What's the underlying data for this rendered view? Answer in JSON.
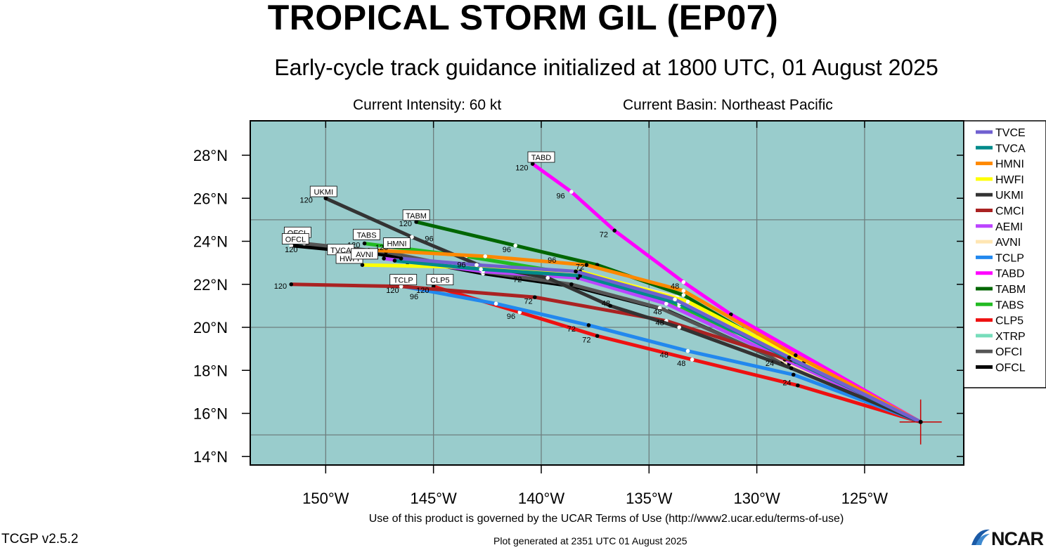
{
  "header": {
    "title": "TROPICAL STORM GIL (EP07)",
    "subtitle": "Early-cycle track guidance initialized at 1800 UTC, 01 August 2025",
    "intensity": "Current Intensity: 60 kt",
    "basin": "Current Basin: Northeast Pacific"
  },
  "footer": {
    "terms": "Use of this product is governed by the UCAR Terms of Use (http://www2.ucar.edu/terms-of-use)",
    "generated": "Plot generated at 2351 UTC   01 August 2025",
    "version": "TCGP v2.5.2",
    "logo_text": "NCAR"
  },
  "map": {
    "lon_range": [
      -153.5,
      -120.4
    ],
    "lat_range": [
      13.6,
      29.6
    ],
    "lat_ticks": [
      {
        "v": 14,
        "label": "14°N"
      },
      {
        "v": 16,
        "label": "16°N"
      },
      {
        "v": 18,
        "label": "18°N"
      },
      {
        "v": 20,
        "label": "20°N"
      },
      {
        "v": 22,
        "label": "22°N"
      },
      {
        "v": 24,
        "label": "24°N"
      },
      {
        "v": 26,
        "label": "26°N"
      },
      {
        "v": 28,
        "label": "28°N"
      }
    ],
    "lon_ticks": [
      {
        "v": -150,
        "label": "150°W"
      },
      {
        "v": -145,
        "label": "145°W"
      },
      {
        "v": -140,
        "label": "140°W"
      },
      {
        "v": -135,
        "label": "135°W"
      },
      {
        "v": -130,
        "label": "130°W"
      },
      {
        "v": -125,
        "label": "125°W"
      }
    ],
    "grid_lons": [
      -150,
      -145,
      -140,
      -135,
      -130,
      -125
    ],
    "grid_lats": [
      15,
      20,
      25
    ],
    "current_position": {
      "lon": -122.4,
      "lat": 15.6
    },
    "colors": {
      "ocean": "#99cccc",
      "grid": "#6e7e7e",
      "marker": "#cc0000"
    }
  },
  "chart_data": {
    "type": "track-map",
    "models": [
      {
        "name": "TVCE",
        "color": "#7060d0",
        "track": [
          [
            -122.4,
            15.6
          ],
          [
            -128.5,
            18.6
          ],
          [
            -133.8,
            21.3
          ],
          [
            -138.4,
            22.6
          ],
          [
            -143,
            22.9
          ],
          [
            -146.5,
            23.2
          ]
        ]
      },
      {
        "name": "TVCA",
        "color": "#008a8a",
        "track": [
          [
            -122.4,
            15.6
          ],
          [
            -128.4,
            18.5
          ],
          [
            -133.6,
            21.1
          ],
          [
            -138.2,
            22.4
          ],
          [
            -142.8,
            22.7
          ],
          [
            -146.8,
            23.1
          ]
        ]
      },
      {
        "name": "HMNI",
        "color": "#ff8800",
        "track": [
          [
            -122.4,
            15.6
          ],
          [
            -128.2,
            18.7
          ],
          [
            -133.4,
            21.7
          ],
          [
            -137.9,
            22.9
          ],
          [
            -142.6,
            23.3
          ],
          [
            -148,
            23.6
          ]
        ],
        "labels": [
          {
            "lon": -139.5,
            "lat": 23.0,
            "t": "96"
          },
          {
            "lon": -147.4,
            "lat": 23.6,
            "t": "120"
          }
        ]
      },
      {
        "name": "HWFI",
        "color": "#ffff00",
        "track": [
          [
            -122.4,
            15.6
          ],
          [
            -127.8,
            18.4
          ],
          [
            -133.2,
            21.2
          ],
          [
            -138.2,
            22.6
          ],
          [
            -143.5,
            22.8
          ],
          [
            -148.3,
            22.9
          ]
        ]
      },
      {
        "name": "UKMI",
        "color": "#333333",
        "track": [
          [
            -122.4,
            15.6
          ],
          [
            -128.4,
            18.1
          ],
          [
            -133.6,
            20.0
          ],
          [
            -136.8,
            21.0
          ],
          [
            -139.7,
            22.3
          ],
          [
            -142.9,
            22.9
          ],
          [
            -146,
            24.2
          ],
          [
            -150,
            26
          ]
        ],
        "labels": [
          {
            "lon": -150.9,
            "lat": 25.8,
            "t": "120"
          },
          {
            "lon": -145.2,
            "lat": 24.0,
            "t": "96"
          },
          {
            "lon": -141.1,
            "lat": 22.1,
            "t": "72"
          },
          {
            "lon": -134.6,
            "lat": 20.6,
            "t": "48"
          }
        ]
      },
      {
        "name": "CMCI",
        "color": "#aa2222",
        "track": [
          [
            -122.4,
            15.6
          ],
          [
            -128.2,
            18.4
          ],
          [
            -134.2,
            20.3
          ],
          [
            -140.3,
            21.4
          ],
          [
            -146.5,
            21.9
          ],
          [
            -151.6,
            22
          ]
        ],
        "labels": [
          {
            "lon": -152.1,
            "lat": 21.8,
            "t": "120"
          },
          {
            "lon": -140.6,
            "lat": 21.1,
            "t": "72"
          },
          {
            "lon": -137,
            "lat": 21.0,
            "t": "48"
          },
          {
            "lon": -134.5,
            "lat": 20.1,
            "t": "48"
          }
        ]
      },
      {
        "name": "AEMI",
        "color": "#bb44ff",
        "track": [
          [
            -122.4,
            15.6
          ],
          [
            -128.7,
            18.5
          ],
          [
            -134.2,
            21.1
          ],
          [
            -138.3,
            22.3
          ],
          [
            -142.7,
            22.6
          ],
          [
            -147.3,
            23.2
          ]
        ]
      },
      {
        "name": "AVNI",
        "color": "#ffe6b3",
        "track": [
          [
            -122.4,
            15.6
          ],
          [
            -128.5,
            18.3
          ],
          [
            -133.7,
            21.4
          ],
          [
            -138,
            22.5
          ],
          [
            -142.6,
            22.8
          ],
          [
            -146.2,
            23
          ]
        ]
      },
      {
        "name": "TCLP",
        "color": "#2288ee",
        "track": [
          [
            -122.4,
            15.6
          ],
          [
            -128.3,
            17.8
          ],
          [
            -133.2,
            18.9
          ],
          [
            -137.8,
            20.1
          ],
          [
            -142.1,
            21.1
          ],
          [
            -146.4,
            21.9
          ]
        ],
        "labels": [
          {
            "lon": -146.9,
            "lat": 21.6,
            "t": "120"
          },
          {
            "lon": -145.9,
            "lat": 21.3,
            "t": "96"
          },
          {
            "lon": -138.6,
            "lat": 19.8,
            "t": "72"
          },
          {
            "lon": -134.3,
            "lat": 18.6,
            "t": "48"
          },
          {
            "lon": -129.4,
            "lat": 18.2,
            "t": "24"
          }
        ]
      },
      {
        "name": "TABD",
        "color": "#ff00ff",
        "track": [
          [
            -122.4,
            15.6
          ],
          [
            -131.2,
            20.6
          ],
          [
            -133.4,
            22.1
          ],
          [
            -136.6,
            24.5
          ],
          [
            -138.6,
            26.3
          ],
          [
            -140.4,
            27.6
          ]
        ],
        "labels": [
          {
            "lon": -140.9,
            "lat": 27.3,
            "t": "120"
          },
          {
            "lon": -139.1,
            "lat": 26,
            "t": "96"
          },
          {
            "lon": -137.1,
            "lat": 24.2,
            "t": "72"
          },
          {
            "lon": -133.8,
            "lat": 21.8,
            "t": "48"
          }
        ]
      },
      {
        "name": "TABM",
        "color": "#006600",
        "track": [
          [
            -122.4,
            15.6
          ],
          [
            -128.3,
            18.5
          ],
          [
            -133.4,
            21.5
          ],
          [
            -137.4,
            22.9
          ],
          [
            -141.2,
            23.8
          ],
          [
            -145.8,
            24.9
          ]
        ],
        "labels": [
          {
            "lon": -146.3,
            "lat": 24.7,
            "t": "120"
          },
          {
            "lon": -141.6,
            "lat": 23.5,
            "t": "96"
          },
          {
            "lon": -138.2,
            "lat": 22.7,
            "t": "72"
          }
        ]
      },
      {
        "name": "TABS",
        "color": "#22bb22",
        "track": [
          [
            -122.4,
            15.6
          ],
          [
            -128.6,
            18.6
          ],
          [
            -133.6,
            21.0
          ],
          [
            -138,
            22.4
          ],
          [
            -143.5,
            23.3
          ],
          [
            -148.2,
            23.9
          ]
        ],
        "labels": [
          {
            "lon": -148.7,
            "lat": 23.7,
            "t": "120"
          },
          {
            "lon": -143.7,
            "lat": 22.8,
            "t": "96"
          }
        ]
      },
      {
        "name": "CLP5",
        "color": "#ee1111",
        "track": [
          [
            -122.4,
            15.6
          ],
          [
            -128.1,
            17.3
          ],
          [
            -133,
            18.5
          ],
          [
            -137.4,
            19.6
          ],
          [
            -141,
            20.7
          ],
          [
            -145,
            21.9
          ]
        ],
        "labels": [
          {
            "lon": -145.5,
            "lat": 21.6,
            "t": "120"
          },
          {
            "lon": -141.4,
            "lat": 20.4,
            "t": "96"
          },
          {
            "lon": -137.9,
            "lat": 19.3,
            "t": "72"
          },
          {
            "lon": -133.5,
            "lat": 18.2,
            "t": "48"
          },
          {
            "lon": -128.6,
            "lat": 17.3,
            "t": "24"
          }
        ]
      },
      {
        "name": "XTRP",
        "color": "#77ddbb",
        "track": []
      },
      {
        "name": "OFCI",
        "color": "#555555",
        "track": [
          [
            -122.4,
            15.6
          ],
          [
            -128.8,
            18.4
          ],
          [
            -134.5,
            20.9
          ],
          [
            -138.6,
            22.0
          ],
          [
            -142.8,
            22.6
          ],
          [
            -147.2,
            23.5
          ],
          [
            -151,
            23.9
          ]
        ],
        "labels": [
          {
            "lon": -151.5,
            "lat": 23.9,
            "t": "120"
          }
        ]
      },
      {
        "name": "OFCL",
        "color": "#000000",
        "track": [
          [
            -122.4,
            15.6
          ],
          [
            -128.6,
            18.3
          ],
          [
            -134.2,
            20.8
          ],
          [
            -138.5,
            21.9
          ],
          [
            -142.7,
            22.5
          ],
          [
            -147.5,
            23.4
          ],
          [
            -151.6,
            23.8
          ]
        ],
        "labels": [
          {
            "lon": -151.6,
            "lat": 23.5,
            "t": "120"
          },
          {
            "lon": -149.1,
            "lat": 23.3,
            "t": "120"
          }
        ]
      }
    ],
    "boxes": [
      {
        "t": "UKMI",
        "lon": -150.1,
        "lat": 26.3
      },
      {
        "t": "TABM",
        "lon": -145.8,
        "lat": 25.2
      },
      {
        "t": "TABD",
        "lon": -140,
        "lat": 27.9
      },
      {
        "t": "OFCL",
        "lon": -151.3,
        "lat": 24.4
      },
      {
        "t": "OFCL",
        "lon": -151.4,
        "lat": 24.1
      },
      {
        "t": "TVCA",
        "lon": -149.3,
        "lat": 23.6
      },
      {
        "t": "TABS",
        "lon": -148.1,
        "lat": 24.3
      },
      {
        "t": "HMNI",
        "lon": -146.7,
        "lat": 23.9
      },
      {
        "t": "HWFI",
        "lon": -148.9,
        "lat": 23.2
      },
      {
        "t": "AVNI",
        "lon": -148.2,
        "lat": 23.4
      },
      {
        "t": "TCLP",
        "lon": -146.4,
        "lat": 22.2
      },
      {
        "t": "CLP5",
        "lon": -144.7,
        "lat": 22.2
      }
    ]
  },
  "legend": [
    "TVCE",
    "TVCA",
    "HMNI",
    "HWFI",
    "UKMI",
    "CMCI",
    "AEMI",
    "AVNI",
    "TCLP",
    "TABD",
    "TABM",
    "TABS",
    "CLP5",
    "XTRP",
    "OFCI",
    "OFCL"
  ]
}
